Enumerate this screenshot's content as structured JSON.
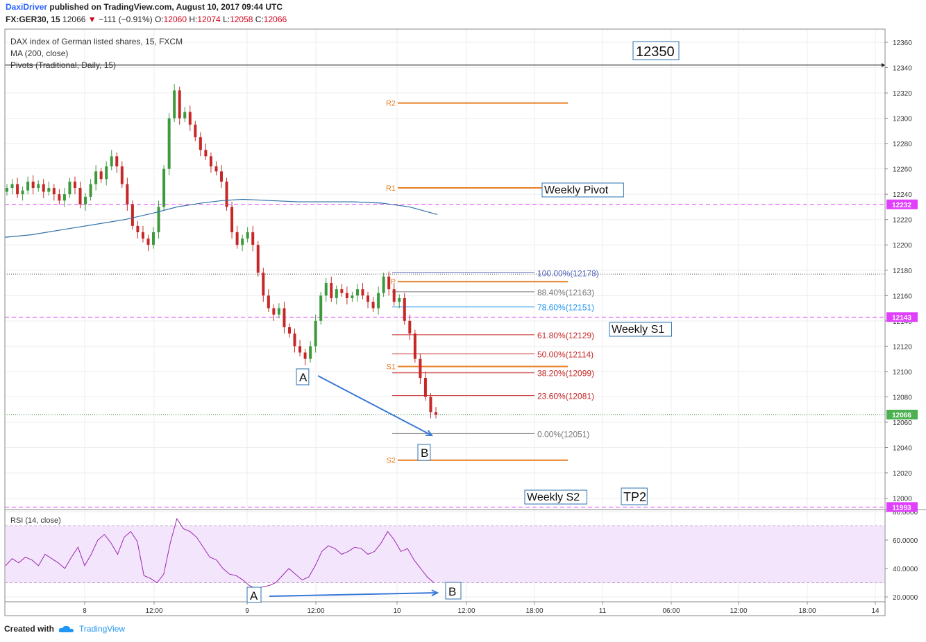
{
  "header": {
    "author": "DaxiDriver",
    "published_text": "published on TradingView.com, August 10, 2017 09:44 UTC",
    "symbol": "FX:GER30, 15",
    "last": "12066",
    "change": "−111 (−0.91%)",
    "open_label": "O:",
    "open": "12060",
    "high_label": "H:",
    "high": "12074",
    "low_label": "L:",
    "low": "12058",
    "close_label": "C:",
    "close": "12066"
  },
  "legend": {
    "title": "DAX index of German listed shares, 15, FXCM",
    "ma": "MA (200, close)",
    "pivots": "Pivots (Traditional, Daily, 15)",
    "rsi": "RSI (14, close)"
  },
  "footer": {
    "created_with": "Created with",
    "brand": "TradingView"
  },
  "colors": {
    "up": "#3c9a3c",
    "down": "#c62828",
    "pivot_orange": "#e67e22",
    "ma_blue": "#2f6fa8",
    "magenta": "#e040fb",
    "rsi_line": "#9c27b0",
    "rsi_band": "#f3e5fb",
    "arrow_blue": "#3a78d8"
  },
  "chart_data": {
    "type": "candlestick",
    "title": "DAX index of German listed shares, 15, FXCM",
    "ylim": [
      11993,
      12368
    ],
    "x_tick_labels": [
      "8",
      "12:00",
      "9",
      "12:00",
      "10",
      "12:00",
      "18:00",
      "11",
      "06:00",
      "12:00",
      "18:00",
      "14"
    ],
    "y_tick_labels": [
      "12360",
      "12340",
      "12320",
      "12300",
      "12280",
      "12260",
      "12240",
      "12220",
      "12200",
      "12180",
      "12160",
      "12140",
      "12120",
      "12100",
      "12080",
      "12060",
      "12040",
      "12020",
      "12000"
    ],
    "y_ticks": [
      12360,
      12340,
      12320,
      12300,
      12280,
      12260,
      12240,
      12220,
      12200,
      12180,
      12160,
      12140,
      12120,
      12100,
      12080,
      12060,
      12040,
      12020,
      12000
    ],
    "price_tags": [
      {
        "label": "12232",
        "value": 12232,
        "style": "magenta"
      },
      {
        "label": "12143",
        "value": 12143,
        "style": "magenta"
      },
      {
        "label": "12066",
        "value": 12066,
        "style": "green"
      },
      {
        "label": "11993",
        "value": 11993,
        "style": "magenta"
      }
    ],
    "candle_closes": [
      12245,
      12248,
      12240,
      12243,
      12250,
      12245,
      12248,
      12242,
      12245,
      12240,
      12235,
      12240,
      12250,
      12245,
      12232,
      12238,
      12248,
      12258,
      12252,
      12262,
      12270,
      12262,
      12248,
      12232,
      12215,
      12210,
      12205,
      12200,
      12210,
      12230,
      12260,
      12300,
      12322,
      12300,
      12305,
      12295,
      12285,
      12275,
      12270,
      12262,
      12258,
      12250,
      12230,
      12210,
      12200,
      12205,
      12210,
      12200,
      12178,
      12160,
      12150,
      12145,
      12150,
      12135,
      12130,
      12120,
      12115,
      12110,
      12120,
      12140,
      12160,
      12170,
      12158,
      12165,
      12162,
      12158,
      12160,
      12165,
      12160,
      12155,
      12150,
      12162,
      12175,
      12165,
      12155,
      12158,
      12140,
      12130,
      12110,
      12095,
      12080,
      12068,
      12066
    ],
    "ma200": [
      12206,
      12208,
      12212,
      12216,
      12220,
      12225,
      12230,
      12233,
      12235,
      12236,
      12235,
      12234,
      12234,
      12234,
      12233,
      12230,
      12224
    ],
    "pivots": [
      {
        "label": "R2",
        "value": 12312
      },
      {
        "label": "R1",
        "value": 12245
      },
      {
        "label": "P",
        "value": 12171
      },
      {
        "label": "S1",
        "value": 12104
      },
      {
        "label": "S2",
        "value": 12030
      }
    ],
    "fibonacci": [
      {
        "label": "100.00%(12178)",
        "value": 12178
      },
      {
        "label": "88.40%(12163)",
        "value": 12163
      },
      {
        "label": "78.60%(12151)",
        "value": 12151
      },
      {
        "label": "61.80%(12129)",
        "value": 12129
      },
      {
        "label": "50.00%(12114)",
        "value": 12114
      },
      {
        "label": "38.20%(12099)",
        "value": 12099
      },
      {
        "label": "23.60%(12081)",
        "value": 12081
      },
      {
        "label": "0.00%(12051)",
        "value": 12051
      }
    ],
    "annotations": [
      "12350",
      "Weekly Pivot",
      "Weekly S1",
      "Weekly S2",
      "TP2",
      "A",
      "B"
    ],
    "rsi": {
      "ylim": [
        15,
        83
      ],
      "y_tick_labels": [
        "80.0000",
        "60.0000",
        "40.0000",
        "20.0000"
      ],
      "y_ticks": [
        80,
        60,
        40,
        20
      ],
      "upper": 70,
      "lower": 30,
      "values": [
        42,
        47,
        44,
        48,
        46,
        42,
        50,
        47,
        44,
        40,
        48,
        55,
        42,
        50,
        60,
        64,
        58,
        50,
        62,
        66,
        59,
        35,
        33,
        30,
        36,
        58,
        75,
        68,
        66,
        62,
        55,
        48,
        46,
        40,
        36,
        35,
        32,
        28,
        26,
        27,
        28,
        30,
        35,
        40,
        36,
        32,
        34,
        42,
        52,
        56,
        54,
        50,
        52,
        55,
        54,
        50,
        52,
        58,
        66,
        60,
        52,
        54,
        46,
        40,
        34,
        30
      ],
      "annotations": [
        "A",
        "B"
      ]
    }
  }
}
